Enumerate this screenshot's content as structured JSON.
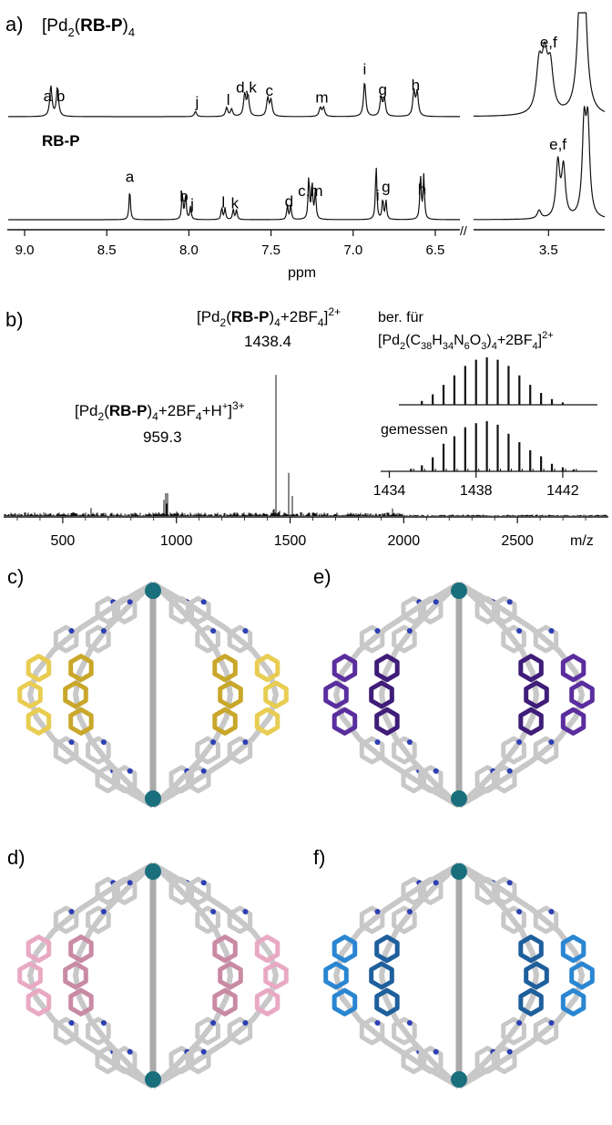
{
  "panel_a": {
    "letter": "a)",
    "top_title": {
      "pre": "[Pd",
      "sub1": "2",
      "mid": "(",
      "bold": "RB-P",
      "post": ")",
      "sub2": "4"
    },
    "bottom_title": "RB-P",
    "xlabel": "ppm",
    "ticks_main": [
      "9.0",
      "8.5",
      "8.0",
      "7.5",
      "7.0",
      "6.5"
    ],
    "ticks_right": [
      "3.5"
    ],
    "top_labels": [
      {
        "text": "a b",
        "ppm": 8.82
      },
      {
        "text": "j",
        "ppm": 7.95
      },
      {
        "text": "l",
        "ppm": 7.76
      },
      {
        "text": "d,k",
        "ppm": 7.65
      },
      {
        "text": "c",
        "ppm": 7.51
      },
      {
        "text": "m",
        "ppm": 7.19
      },
      {
        "text": "i",
        "ppm": 6.93
      },
      {
        "text": "g",
        "ppm": 6.82
      },
      {
        "text": "h",
        "ppm": 6.62
      },
      {
        "text": "e,f",
        "ppm": 3.5
      }
    ],
    "bottom_labels": [
      {
        "text": "a",
        "ppm": 8.36
      },
      {
        "text": "b",
        "ppm": 8.03
      },
      {
        "text": "j",
        "ppm": 7.98
      },
      {
        "text": "l",
        "ppm": 7.79
      },
      {
        "text": "k",
        "ppm": 7.72
      },
      {
        "text": "d",
        "ppm": 7.39
      },
      {
        "text": "c,m",
        "ppm": 7.26
      },
      {
        "text": "i",
        "ppm": 6.85
      },
      {
        "text": "g",
        "ppm": 6.8
      },
      {
        "text": "h",
        "ppm": 6.58
      },
      {
        "text": "e,f",
        "ppm": 3.45
      }
    ]
  },
  "panel_b": {
    "letter": "b)",
    "label_3plus": {
      "pre": "[Pd",
      "sub1": "2",
      "mid": "(",
      "bold": "RB-P",
      "post": ")",
      "sub2": "4",
      "tail": "+2BF",
      "sub3": "4",
      "tail2": "+H",
      "sup_h": "+",
      "close": "]",
      "sup": "3+"
    },
    "value_3plus": "959.3",
    "label_2plus": {
      "pre": "[Pd",
      "sub1": "2",
      "mid": "(",
      "bold": "RB-P",
      "post": ")",
      "sub2": "4",
      "tail": "+2BF",
      "sub3": "4",
      "close": "]",
      "sup": "2+"
    },
    "value_2plus": "1438.4",
    "calc_line1": "ber. für",
    "calc_formula": {
      "pre": "[Pd",
      "sub1": "2",
      "p2": "(C",
      "s_c": "38",
      "p3": "H",
      "s_h": "34",
      "p4": "N",
      "s_n": "6",
      "p5": "O",
      "s_o": "3",
      "p6": ")",
      "s_4": "4",
      "p7": "+2BF",
      "s_bf": "4",
      "p8": "]",
      "sup": "2+"
    },
    "measured_label": "gemessen",
    "inset_ticks": [
      "1434",
      "1438",
      "1442"
    ],
    "xlabel": "m/z",
    "ticks": [
      "500",
      "1000",
      "1500",
      "2000",
      "2500"
    ]
  },
  "structures": [
    {
      "letter": "c)",
      "ligand_color": "#e8cd52",
      "dark_color": "#c9a72a"
    },
    {
      "letter": "e)",
      "ligand_color": "#5a2e9e",
      "dark_color": "#3f1d78"
    },
    {
      "letter": "d)",
      "ligand_color": "#e9a9c3",
      "dark_color": "#c98aa4"
    },
    {
      "letter": "f)",
      "ligand_color": "#2a86d1",
      "dark_color": "#1e5f9c"
    }
  ],
  "colors": {
    "pd": "#1a6f7c",
    "nitrogen": "#2d3fb5",
    "carbon": "#c8c8c8",
    "oxygen": "#e03020",
    "sulfur": "#d8c020"
  },
  "chart_data": [
    {
      "type": "line",
      "name": "1H NMR",
      "xlabel": "ppm",
      "x_reversed": true,
      "xlim_main": [
        6.35,
        9.1
      ],
      "xlim_right": [
        3.2,
        3.9
      ],
      "series": [
        {
          "name": "[Pd2(RB-P)4]",
          "peaks": [
            [
              8.84,
              0.42
            ],
            [
              8.8,
              0.4
            ],
            [
              7.96,
              0.07
            ],
            [
              7.77,
              0.12
            ],
            [
              7.74,
              0.1
            ],
            [
              7.66,
              0.3
            ],
            [
              7.64,
              0.28
            ],
            [
              7.52,
              0.25
            ],
            [
              7.5,
              0.22
            ],
            [
              7.2,
              0.12
            ],
            [
              7.18,
              0.12
            ],
            [
              6.93,
              0.48
            ],
            [
              6.83,
              0.26
            ],
            [
              6.81,
              0.24
            ],
            [
              6.63,
              0.34
            ],
            [
              6.61,
              0.33
            ]
          ],
          "right_peaks": [
            [
              3.55,
              0.85
            ],
            [
              3.52,
              0.9
            ],
            [
              3.49,
              0.8
            ],
            [
              3.33,
              1.9
            ],
            [
              3.31,
              1.9
            ]
          ]
        },
        {
          "name": "RB-P",
          "peaks": [
            [
              8.36,
              0.42
            ],
            [
              8.04,
              0.37
            ],
            [
              8.02,
              0.35
            ],
            [
              7.99,
              0.18
            ],
            [
              7.8,
              0.16
            ],
            [
              7.78,
              0.16
            ],
            [
              7.73,
              0.14
            ],
            [
              7.71,
              0.14
            ],
            [
              7.4,
              0.2
            ],
            [
              7.38,
              0.2
            ],
            [
              7.27,
              0.58
            ],
            [
              7.25,
              0.5
            ],
            [
              7.23,
              0.4
            ],
            [
              6.86,
              0.75
            ],
            [
              6.82,
              0.28
            ],
            [
              6.8,
              0.26
            ],
            [
              6.59,
              0.62
            ],
            [
              6.57,
              0.6
            ]
          ],
          "right_peaks": [
            [
              3.55,
              0.15
            ],
            [
              3.45,
              1.0
            ],
            [
              3.42,
              0.9
            ],
            [
              3.31,
              1.6
            ],
            [
              3.29,
              1.6
            ]
          ]
        }
      ]
    },
    {
      "type": "line",
      "name": "ESI mass spectrum",
      "xlabel": "m/z",
      "xlim": [
        240,
        2900
      ],
      "peaks": [
        [
          945,
          0.08
        ],
        [
          953,
          0.12
        ],
        [
          959.3,
          0.43
        ],
        [
          1000,
          0.03
        ],
        [
          1438.4,
          1.0
        ],
        [
          1428,
          0.12
        ],
        [
          1452,
          0.1
        ],
        [
          1493,
          0.35
        ],
        [
          1510,
          0.12
        ],
        [
          1548,
          0.06
        ],
        [
          1950,
          0.03
        ],
        [
          625,
          0.03
        ],
        [
          740,
          0.02
        ]
      ]
    },
    {
      "type": "bar",
      "name": "isotope pattern",
      "xlim": [
        1433.6,
        1443.6
      ],
      "series": [
        {
          "name": "ber. für",
          "x": [
            1435.5,
            1436,
            1436.5,
            1437,
            1437.5,
            1438,
            1438.5,
            1439,
            1439.5,
            1440,
            1440.5,
            1441,
            1441.5,
            1442
          ],
          "values": [
            0.08,
            0.22,
            0.42,
            0.62,
            0.82,
            0.95,
            1.0,
            0.95,
            0.82,
            0.62,
            0.42,
            0.25,
            0.12,
            0.05
          ]
        },
        {
          "name": "gemessen",
          "x": [
            1435,
            1435.5,
            1436,
            1436.5,
            1437,
            1437.5,
            1438,
            1438.5,
            1439,
            1439.5,
            1440,
            1440.5,
            1441,
            1441.5,
            1442,
            1442.5
          ],
          "values": [
            0.05,
            0.12,
            0.28,
            0.55,
            0.7,
            0.88,
            0.96,
            1.0,
            0.93,
            0.75,
            0.58,
            0.42,
            0.3,
            0.15,
            0.08,
            0.04
          ]
        }
      ]
    }
  ]
}
